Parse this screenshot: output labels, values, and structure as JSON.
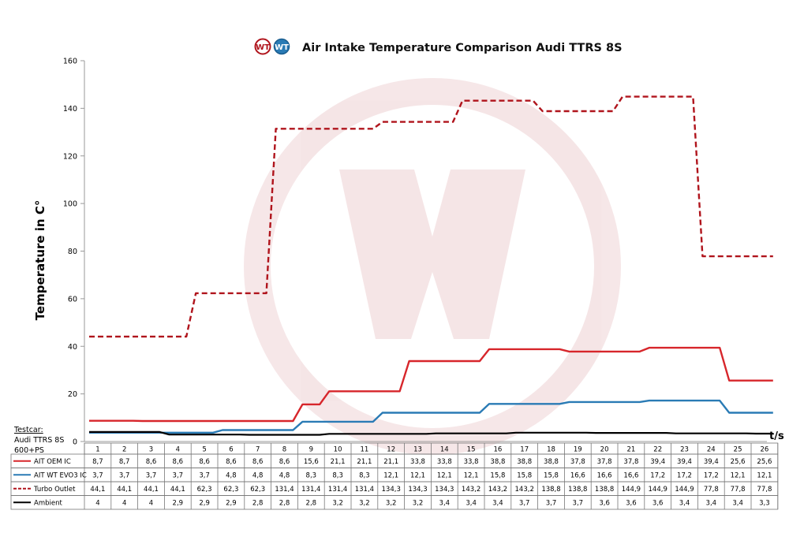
{
  "logos": [
    "WT",
    "WT"
  ],
  "chart_data": {
    "type": "line",
    "title": "Air Intake Temperature Comparison Audi TTRS 8S",
    "ylabel": "Temperature in C°",
    "xlabel": "t/s",
    "ylim": [
      0,
      160
    ],
    "yticks": [
      0,
      20,
      40,
      60,
      80,
      100,
      120,
      140,
      160
    ],
    "grid": false,
    "legend": "table-below",
    "categories": [
      "1",
      "2",
      "3",
      "4",
      "5",
      "6",
      "7",
      "8",
      "9",
      "10",
      "11",
      "12",
      "13",
      "14",
      "15",
      "16",
      "17",
      "18",
      "19",
      "20",
      "21",
      "22",
      "23",
      "24",
      "25",
      "26"
    ],
    "testcar": [
      "Testcar:",
      "Audi TTRS 8S",
      "600+PS"
    ],
    "series": [
      {
        "name": "AIT OEM IC",
        "color": "#d7262b",
        "dash": "solid",
        "labels": [
          "8,7",
          "8,7",
          "8,6",
          "8,6",
          "8,6",
          "8,6",
          "8,6",
          "8,6",
          "15,6",
          "21,1",
          "21,1",
          "21,1",
          "33,8",
          "33,8",
          "33,8",
          "38,8",
          "38,8",
          "38,8",
          "37,8",
          "37,8",
          "37,8",
          "39,4",
          "39,4",
          "39,4",
          "25,6",
          "25,6"
        ],
        "values": [
          8.7,
          8.7,
          8.6,
          8.6,
          8.6,
          8.6,
          8.6,
          8.6,
          15.6,
          21.1,
          21.1,
          21.1,
          33.8,
          33.8,
          33.8,
          38.8,
          38.8,
          38.8,
          37.8,
          37.8,
          37.8,
          39.4,
          39.4,
          39.4,
          25.6,
          25.6
        ]
      },
      {
        "name": "AIT WT EVO3 IC",
        "color": "#2a7bb5",
        "dash": "solid",
        "labels": [
          "3,7",
          "3,7",
          "3,7",
          "3,7",
          "3,7",
          "4,8",
          "4,8",
          "4,8",
          "8,3",
          "8,3",
          "8,3",
          "12,1",
          "12,1",
          "12,1",
          "12,1",
          "15,8",
          "15,8",
          "15,8",
          "16,6",
          "16,6",
          "16,6",
          "17,2",
          "17,2",
          "17,2",
          "12,1",
          "12,1"
        ],
        "values": [
          3.7,
          3.7,
          3.7,
          3.7,
          3.7,
          4.8,
          4.8,
          4.8,
          8.3,
          8.3,
          8.3,
          12.1,
          12.1,
          12.1,
          12.1,
          15.8,
          15.8,
          15.8,
          16.6,
          16.6,
          16.6,
          17.2,
          17.2,
          17.2,
          12.1,
          12.1
        ]
      },
      {
        "name": "Turbo Outlet",
        "color": "#b0141c",
        "dash": "dashed",
        "labels": [
          "44,1",
          "44,1",
          "44,1",
          "44,1",
          "62,3",
          "62,3",
          "62,3",
          "131,4",
          "131,4",
          "131,4",
          "131,4",
          "134,3",
          "134,3",
          "134,3",
          "143,2",
          "143,2",
          "143,2",
          "138,8",
          "138,8",
          "138,8",
          "144,9",
          "144,9",
          "144,9",
          "77,8",
          "77,8",
          "77,8"
        ],
        "values": [
          44.1,
          44.1,
          44.1,
          44.1,
          62.3,
          62.3,
          62.3,
          131.4,
          131.4,
          131.4,
          131.4,
          134.3,
          134.3,
          134.3,
          143.2,
          143.2,
          143.2,
          138.8,
          138.8,
          138.8,
          144.9,
          144.9,
          144.9,
          77.8,
          77.8,
          77.8
        ]
      },
      {
        "name": "Ambient",
        "color": "#000000",
        "dash": "solid",
        "labels": [
          "4",
          "4",
          "4",
          "2,9",
          "2,9",
          "2,9",
          "2,8",
          "2,8",
          "2,8",
          "3,2",
          "3,2",
          "3,2",
          "3,2",
          "3,4",
          "3,4",
          "3,4",
          "3,7",
          "3,7",
          "3,7",
          "3,6",
          "3,6",
          "3,6",
          "3,4",
          "3,4",
          "3,4",
          "3,3"
        ],
        "values": [
          4,
          4,
          4,
          2.9,
          2.9,
          2.9,
          2.8,
          2.8,
          2.8,
          3.2,
          3.2,
          3.2,
          3.2,
          3.4,
          3.4,
          3.4,
          3.7,
          3.7,
          3.7,
          3.6,
          3.6,
          3.6,
          3.4,
          3.4,
          3.4,
          3.3
        ]
      }
    ]
  }
}
